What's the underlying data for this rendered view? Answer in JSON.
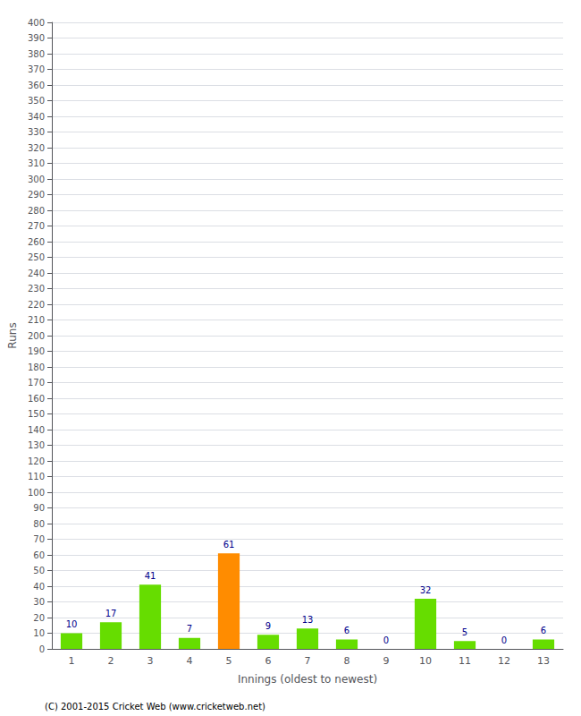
{
  "chart_data": {
    "type": "bar",
    "xlabel": "Innings (oldest to newest)",
    "ylabel": "Runs",
    "categories": [
      "1",
      "2",
      "3",
      "4",
      "5",
      "6",
      "7",
      "8",
      "9",
      "10",
      "11",
      "12",
      "13"
    ],
    "values": [
      10,
      17,
      41,
      7,
      61,
      9,
      13,
      6,
      0,
      32,
      5,
      0,
      6
    ],
    "colors": [
      "#66dd00",
      "#66dd00",
      "#66dd00",
      "#66dd00",
      "#ff8c00",
      "#66dd00",
      "#66dd00",
      "#66dd00",
      "#66dd00",
      "#66dd00",
      "#66dd00",
      "#66dd00",
      "#66dd00"
    ],
    "ylim": [
      0,
      400
    ],
    "yticks": [
      0,
      10,
      20,
      30,
      40,
      50,
      60,
      70,
      80,
      90,
      100,
      110,
      120,
      130,
      140,
      150,
      160,
      170,
      180,
      190,
      200,
      210,
      220,
      230,
      240,
      250,
      260,
      270,
      280,
      290,
      300,
      310,
      320,
      330,
      340,
      350,
      360,
      370,
      380,
      390,
      400
    ],
    "grid": true,
    "data_labels": true,
    "annotations": [
      "(C) 2001-2015 Cricket Web (www.cricketweb.net)"
    ]
  }
}
